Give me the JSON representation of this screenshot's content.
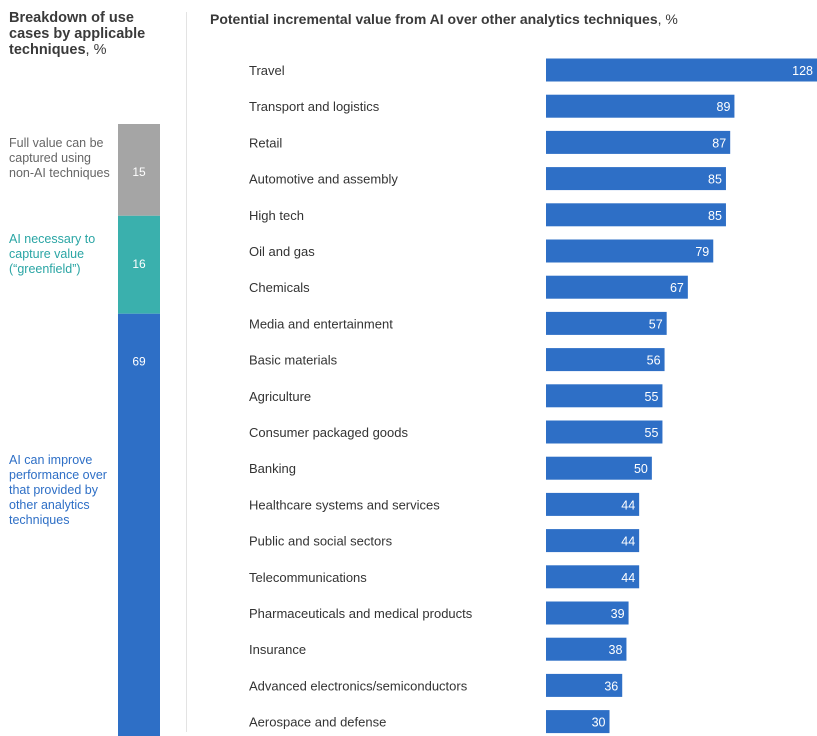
{
  "left_panel": {
    "title": "Breakdown of use cases by applicable techniques",
    "unit": ", %"
  },
  "right_panel": {
    "title": "Potential incremental value from AI over other analytics techniques",
    "unit": ", %"
  },
  "chart_data": [
    {
      "type": "bar",
      "orientation": "vertical-stacked",
      "segments": [
        {
          "label": "Full value can be captured using non-AI techniques",
          "value": 15,
          "color": "#a5a5a5"
        },
        {
          "label": "AI necessary to capture value (“greenfield”)",
          "value": 16,
          "color": "#3ab0ad"
        },
        {
          "label": "AI can improve performance over that provided by other analytics techniques",
          "value": 69,
          "color": "#2e6fc6"
        }
      ]
    },
    {
      "type": "bar",
      "orientation": "horizontal",
      "bar_color": "#2e6fc6",
      "categories": [
        "Travel",
        "Transport and logistics",
        "Retail",
        "Automotive and assembly",
        "High tech",
        "Oil and gas",
        "Chemicals",
        "Media and entertainment",
        "Basic materials",
        "Agriculture",
        "Consumer packaged goods",
        "Banking",
        "Healthcare systems and services",
        "Public and social sectors",
        "Telecommunications",
        "Pharmaceuticals and medical products",
        "Insurance",
        "Advanced electronics/semiconductors",
        "Aerospace and defense"
      ],
      "values": [
        128,
        89,
        87,
        85,
        85,
        79,
        67,
        57,
        56,
        55,
        55,
        50,
        44,
        44,
        44,
        39,
        38,
        36,
        30
      ]
    }
  ]
}
